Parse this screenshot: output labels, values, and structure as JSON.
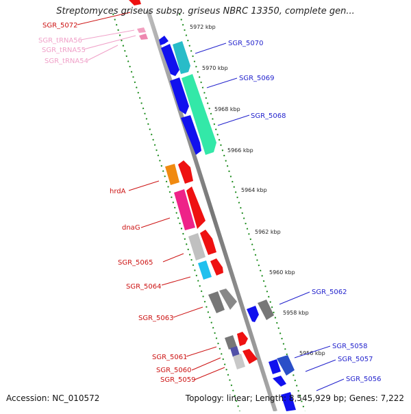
{
  "title": "Streptomyces griseus subsp. griseus NBRC 13350, complete gen...",
  "footer": {
    "accession_label": "Accession:",
    "accession": "NC_010572",
    "topology_label": "Topology:",
    "topology": "linear",
    "length_label": "Length:",
    "length": "8,545,929 bp",
    "genes_label": "Genes:",
    "genes": "7,222"
  },
  "colors": {
    "forward_label": "#1f1fcc",
    "reverse_label": "#cc1111",
    "trna_label": "#f0a0c8",
    "axis": "#888888",
    "tick": "#1a8a1a"
  },
  "ticks": [
    {
      "label": "5972 kbp"
    },
    {
      "label": "5970 kbp"
    },
    {
      "label": "5968 kbp"
    },
    {
      "label": "5966 kbp"
    },
    {
      "label": "5964 kbp"
    },
    {
      "label": "5962 kbp"
    },
    {
      "label": "5960 kbp"
    },
    {
      "label": "5958 kbp"
    },
    {
      "label": "5956 kbp"
    }
  ],
  "gene_labels": [
    {
      "name": "SGR_5072",
      "strand": "reverse"
    },
    {
      "name": "SGR_tRNA56",
      "strand": "trna"
    },
    {
      "name": "SGR_tRNA55",
      "strand": "trna"
    },
    {
      "name": "SGR_tRNA54",
      "strand": "trna"
    },
    {
      "name": "SGR_5070",
      "strand": "forward"
    },
    {
      "name": "SGR_5069",
      "strand": "forward"
    },
    {
      "name": "SGR_5068",
      "strand": "forward"
    },
    {
      "name": "hrdA",
      "strand": "reverse"
    },
    {
      "name": "dnaG",
      "strand": "reverse"
    },
    {
      "name": "SGR_5065",
      "strand": "reverse"
    },
    {
      "name": "SGR_5064",
      "strand": "reverse"
    },
    {
      "name": "SGR_5063",
      "strand": "reverse"
    },
    {
      "name": "SGR_5062",
      "strand": "forward"
    },
    {
      "name": "SGR_5061",
      "strand": "reverse"
    },
    {
      "name": "SGR_5060",
      "strand": "reverse"
    },
    {
      "name": "SGR_5059",
      "strand": "reverse"
    },
    {
      "name": "SGR_5058",
      "strand": "forward"
    },
    {
      "name": "SGR_5057",
      "strand": "forward"
    },
    {
      "name": "SGR_5056",
      "strand": "forward"
    }
  ]
}
